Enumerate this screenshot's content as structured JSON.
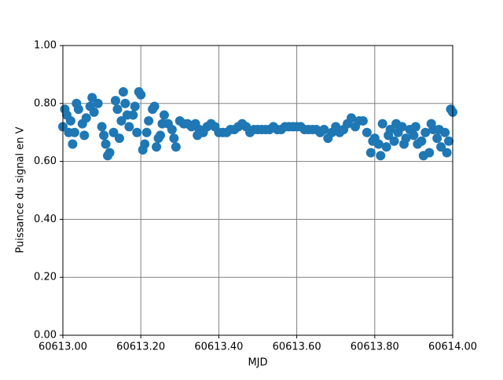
{
  "chart_data": {
    "type": "scatter",
    "x_label": "MJD",
    "y_label": "Puissance du signal en V",
    "color": "#1f77b4",
    "grid": true,
    "xlim": [
      60613.0,
      60614.0
    ],
    "xticks": [
      {
        "value": 60613.0,
        "label": "60613.00"
      },
      {
        "value": 60613.2,
        "label": "60613.20"
      },
      {
        "value": 60613.4,
        "label": "60613.40"
      },
      {
        "value": 60613.6,
        "label": "60613.60"
      },
      {
        "value": 60613.8,
        "label": "60613.80"
      },
      {
        "value": 60614.0,
        "label": "60614.00"
      }
    ],
    "ylim": [
      0,
      1
    ],
    "yticks": [
      {
        "value": 0,
        "label": "0.00"
      },
      {
        "value": 0.2,
        "label": "0.20"
      },
      {
        "value": 0.4,
        "label": "0.40"
      },
      {
        "value": 0.6,
        "label": "0.60"
      },
      {
        "value": 0.8,
        "label": "0.80"
      },
      {
        "value": 1,
        "label": "1.00"
      }
    ],
    "x": [
      60613.0,
      60613.01,
      60613.02,
      60613.03,
      60613.04,
      60613.05,
      60613.06,
      60613.07,
      60613.08,
      60613.09,
      60613.1,
      60613.11,
      60613.12,
      60613.13,
      60613.14,
      60613.15,
      60613.16,
      60613.17,
      60613.18,
      60613.19,
      60613.2,
      60613.21,
      60613.22,
      60613.23,
      60613.24,
      60613.25,
      60613.26,
      60613.27,
      60613.28,
      60613.29,
      60613.3,
      60613.31,
      60613.32,
      60613.33,
      60613.34,
      60613.35,
      60613.36,
      60613.37,
      60613.38,
      60613.39,
      60613.4,
      60613.41,
      60613.42,
      60613.43,
      60613.44,
      60613.45,
      60613.46,
      60613.47,
      60613.48,
      60613.49,
      60613.5,
      60613.51,
      60613.52,
      60613.53,
      60613.54,
      60613.55,
      60613.56,
      60613.57,
      60613.58,
      60613.59,
      60613.6,
      60613.61,
      60613.62,
      60613.63,
      60613.64,
      60613.65,
      60613.66,
      60613.67,
      60613.68,
      60613.69,
      60613.7,
      60613.71,
      60613.72,
      60613.73,
      60613.74,
      60613.75,
      60613.76,
      60613.77,
      60613.78,
      60613.79,
      60613.8,
      60613.81,
      60613.82,
      60613.83,
      60613.84,
      60613.85,
      60613.86,
      60613.87,
      60613.88,
      60613.89,
      60613.9,
      60613.91,
      60613.92,
      60613.93,
      60613.94,
      60613.95,
      60613.96,
      60613.97,
      60613.98,
      60613.99,
      60614.0,
      60613.005,
      60613.015,
      60613.025,
      60613.035,
      60613.055,
      60613.075,
      60613.105,
      60613.115,
      60613.135,
      60613.145,
      60613.155,
      60613.165,
      60613.185,
      60613.195,
      60613.205,
      60613.215,
      60613.235,
      60613.245,
      60613.255,
      60613.285,
      60613.345,
      60613.795,
      60613.815,
      60613.835,
      60613.855,
      60613.875,
      60613.905,
      60613.925,
      60613.945,
      60613.965,
      60613.985,
      60613.995
    ],
    "values": [
      0.72,
      0.76,
      0.74,
      0.7,
      0.78,
      0.73,
      0.75,
      0.79,
      0.77,
      0.8,
      0.72,
      0.66,
      0.63,
      0.7,
      0.78,
      0.74,
      0.8,
      0.72,
      0.76,
      0.7,
      0.83,
      0.66,
      0.74,
      0.78,
      0.65,
      0.69,
      0.76,
      0.73,
      0.71,
      0.65,
      0.74,
      0.73,
      0.73,
      0.72,
      0.73,
      0.71,
      0.7,
      0.72,
      0.73,
      0.72,
      0.7,
      0.7,
      0.7,
      0.71,
      0.71,
      0.72,
      0.73,
      0.72,
      0.7,
      0.71,
      0.71,
      0.71,
      0.71,
      0.71,
      0.72,
      0.71,
      0.71,
      0.72,
      0.72,
      0.72,
      0.72,
      0.72,
      0.71,
      0.71,
      0.71,
      0.71,
      0.7,
      0.71,
      0.68,
      0.7,
      0.72,
      0.7,
      0.71,
      0.73,
      0.75,
      0.72,
      0.74,
      0.74,
      0.7,
      0.63,
      0.68,
      0.66,
      0.73,
      0.65,
      0.71,
      0.67,
      0.7,
      0.72,
      0.68,
      0.71,
      0.69,
      0.66,
      0.67,
      0.7,
      0.63,
      0.71,
      0.68,
      0.65,
      0.7,
      0.67,
      0.77,
      0.78,
      0.7,
      0.66,
      0.8,
      0.69,
      0.82,
      0.69,
      0.62,
      0.81,
      0.68,
      0.84,
      0.76,
      0.79,
      0.84,
      0.64,
      0.7,
      0.79,
      0.68,
      0.73,
      0.68,
      0.69,
      0.67,
      0.62,
      0.69,
      0.73,
      0.66,
      0.72,
      0.62,
      0.73,
      0.71,
      0.63,
      0.78
    ]
  }
}
